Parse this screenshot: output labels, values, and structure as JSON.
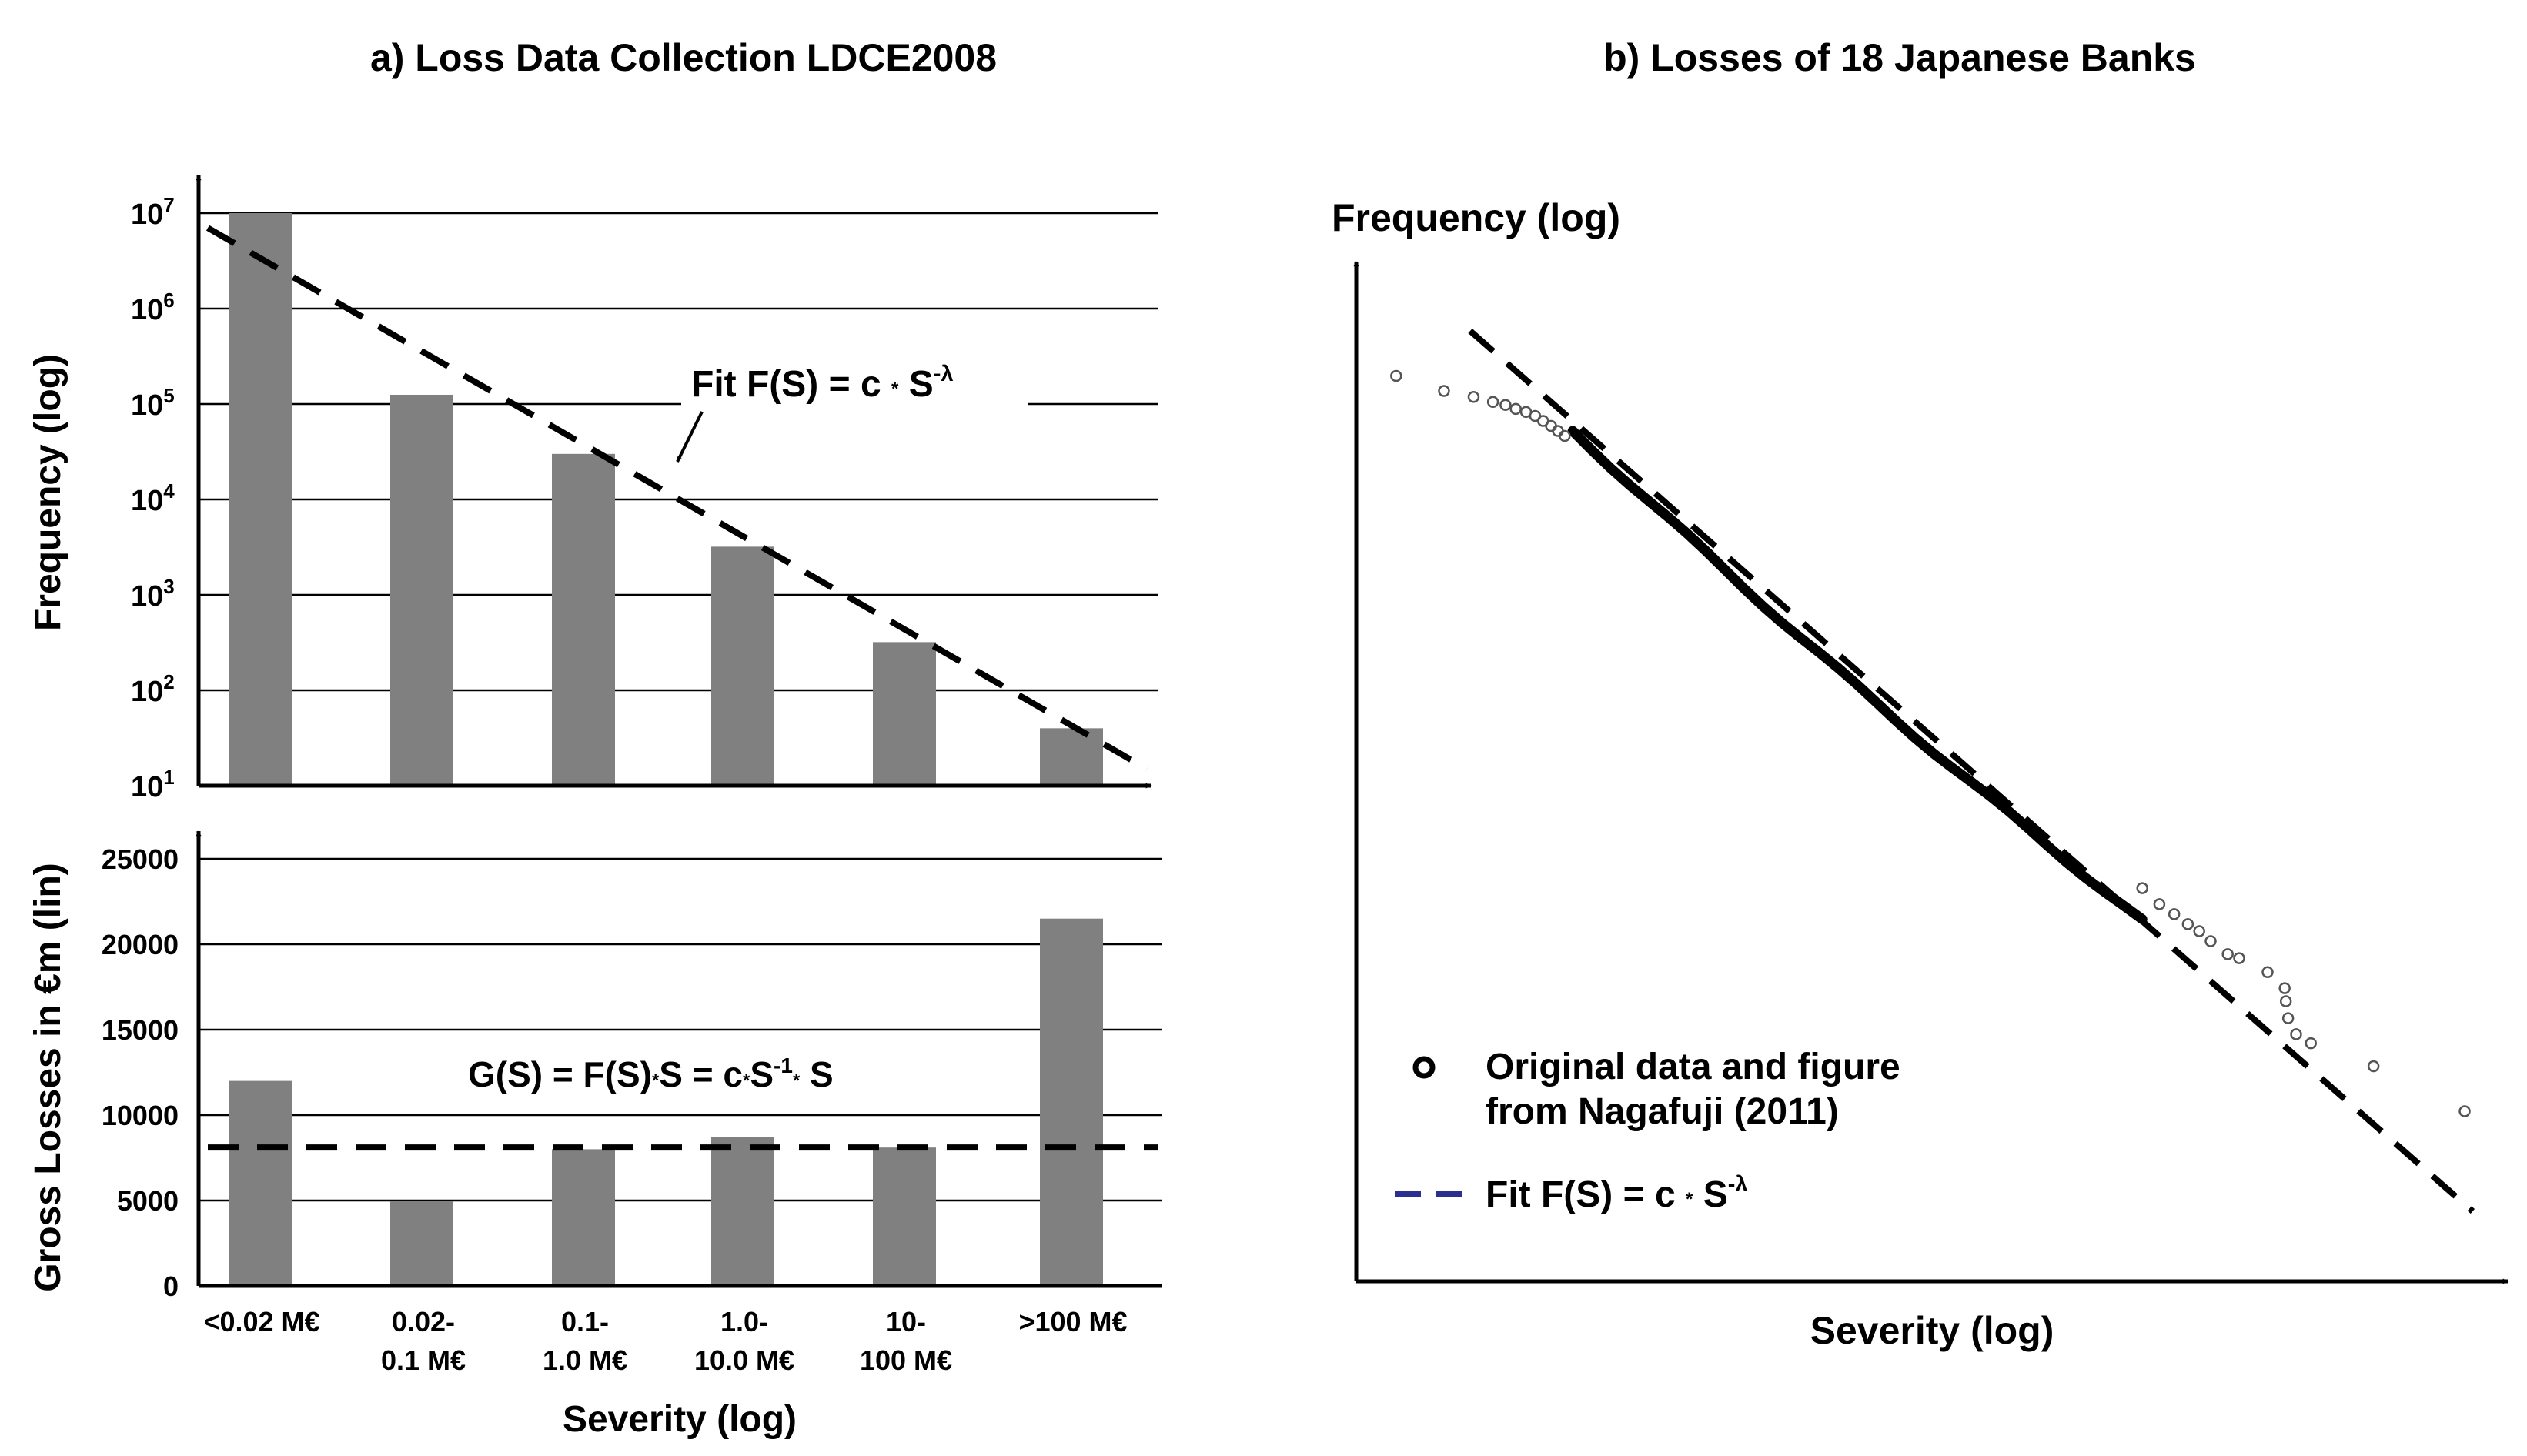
{
  "chart_data": [
    {
      "id": "panel-a-top",
      "type": "bar",
      "title": "a) Loss Data Collection LDCE2008",
      "ylabel": "Frequency (log)",
      "yscale": "log",
      "ylim": [
        10,
        10000000
      ],
      "ytick_exponents": [
        "7",
        "6",
        "5",
        "4",
        "3",
        "2",
        "1"
      ],
      "ytick_base": "10",
      "categories": [
        "<0.02 M€",
        "0.02-0.1 M€",
        "0.1-1.0 M€",
        "1.0-10.0 M€",
        "10-100 M€",
        ">100 M€"
      ],
      "values": [
        10000000,
        125000,
        30000,
        3200,
        320,
        40
      ],
      "fit_line": {
        "style": "dashed",
        "start_value": 7000000,
        "end_value": 15
      },
      "annotation": {
        "prefix": "Fit F(S) = c ",
        "op": "*",
        "base": " S",
        "exponent": "-λ"
      }
    },
    {
      "id": "panel-a-bottom",
      "type": "bar",
      "xlabel": "Severity (log)",
      "ylabel": "Gross Losses in €m (lin)",
      "ylim": [
        0,
        25000
      ],
      "yticks": [
        "25000",
        "20000",
        "15000",
        "10000",
        "5000",
        "0"
      ],
      "categories_display": [
        [
          "<0.02 M€",
          ""
        ],
        [
          "0.02-",
          "0.1 M€"
        ],
        [
          "0.1-",
          "1.0 M€"
        ],
        [
          "1.0-",
          "10.0 M€"
        ],
        [
          "10-",
          "100 M€"
        ],
        [
          ">100 M€",
          ""
        ]
      ],
      "values": [
        12000,
        5000,
        8000,
        8700,
        8100,
        21500
      ],
      "fit_line": {
        "style": "dashed",
        "value": 8100
      },
      "annotation": {
        "p1": "G(S) = F(S)",
        "op1": "*",
        "p2": "S = c",
        "op2": "*",
        "p3": "S",
        "sup": "-1",
        "op3": "*",
        "p4": " S"
      }
    },
    {
      "id": "panel-b",
      "type": "scatter",
      "title": "b) Losses of 18 Japanese Banks",
      "xlabel": "Severity (log)",
      "ylabel": "Frequency (log)",
      "note": "axes without tick labels; values in normalized log units",
      "xlim": [
        0,
        1
      ],
      "ylim": [
        0,
        1
      ],
      "fit_line": {
        "style": "dashed",
        "x": [
          0.1,
          0.98
        ],
        "y": [
          0.95,
          0.07
        ]
      },
      "dense_segment": {
        "x": [
          0.19,
          0.69
        ],
        "y": [
          0.85,
          0.36
        ]
      },
      "points": [
        {
          "x": 0.035,
          "y": 0.905
        },
        {
          "x": 0.077,
          "y": 0.89
        },
        {
          "x": 0.103,
          "y": 0.884
        },
        {
          "x": 0.12,
          "y": 0.879
        },
        {
          "x": 0.131,
          "y": 0.876
        },
        {
          "x": 0.14,
          "y": 0.872
        },
        {
          "x": 0.149,
          "y": 0.869
        },
        {
          "x": 0.157,
          "y": 0.865
        },
        {
          "x": 0.164,
          "y": 0.86
        },
        {
          "x": 0.171,
          "y": 0.855
        },
        {
          "x": 0.177,
          "y": 0.85
        },
        {
          "x": 0.183,
          "y": 0.845
        },
        {
          "x": 0.69,
          "y": 0.393
        },
        {
          "x": 0.705,
          "y": 0.377
        },
        {
          "x": 0.718,
          "y": 0.367
        },
        {
          "x": 0.73,
          "y": 0.357
        },
        {
          "x": 0.74,
          "y": 0.35
        },
        {
          "x": 0.75,
          "y": 0.34
        },
        {
          "x": 0.765,
          "y": 0.327
        },
        {
          "x": 0.775,
          "y": 0.323
        },
        {
          "x": 0.8,
          "y": 0.309
        },
        {
          "x": 0.815,
          "y": 0.293
        },
        {
          "x": 0.816,
          "y": 0.28
        },
        {
          "x": 0.818,
          "y": 0.263
        },
        {
          "x": 0.825,
          "y": 0.247
        },
        {
          "x": 0.838,
          "y": 0.238
        },
        {
          "x": 0.893,
          "y": 0.215
        },
        {
          "x": 0.973,
          "y": 0.17
        }
      ],
      "legend": {
        "marker_label_line1": "Original data and figure",
        "marker_label_line2": "from Nagafuji (2011)",
        "fit_prefix": "Fit F(S) = c ",
        "fit_op": "*",
        "fit_base": " S",
        "fit_exponent": "-λ"
      }
    }
  ]
}
